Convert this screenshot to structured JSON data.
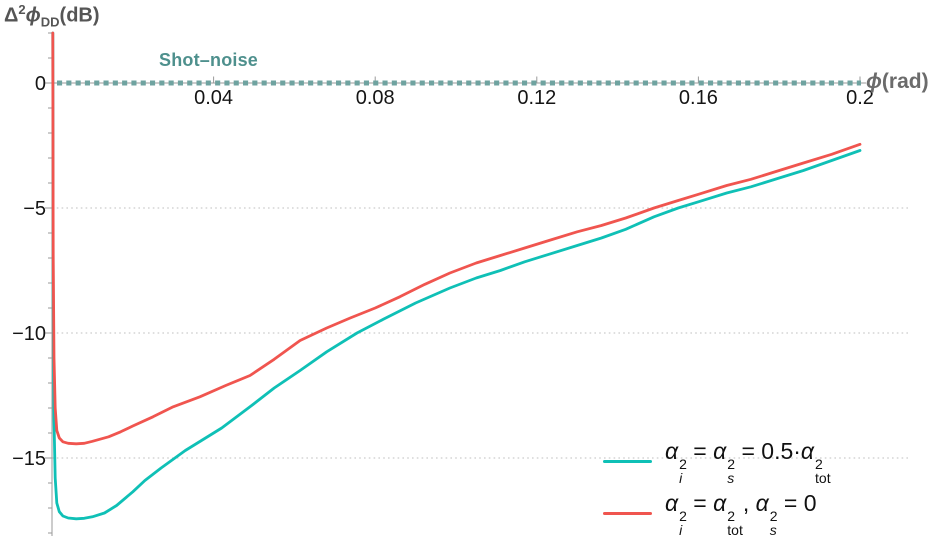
{
  "figure_background": "#ffffff",
  "annotations": {
    "shot_noise_label": "Shot–noise"
  },
  "chart_data": {
    "type": "line",
    "title": "",
    "xlabel_tokens": [
      {
        "i": "ϕ"
      },
      {
        "t": "(rad)"
      }
    ],
    "ylabel_tokens": [
      {
        "t": "Δ"
      },
      {
        "sup": "2"
      },
      {
        "i": "ϕ"
      },
      {
        "sub": "DD"
      },
      {
        "t": "(dB)"
      }
    ],
    "xlim": [
      0,
      0.2
    ],
    "ylim": [
      -18.1,
      2
    ],
    "grid": "horizontal-dotted",
    "gridlines_y": [
      -5,
      -10,
      -15
    ],
    "x_ticks": {
      "values": [
        0.04,
        0.08,
        0.12,
        0.16,
        0.2
      ],
      "labels": [
        "0.04",
        "0.08",
        "0.12",
        "0.16",
        "0.2"
      ]
    },
    "y_ticks": {
      "values": [
        0,
        -5,
        -10,
        -15
      ],
      "labels": [
        "0",
        "−5",
        "−10",
        "−15"
      ]
    },
    "y_minor_tick_step": 1,
    "colors": {
      "axis": "#9a9a9a",
      "grid": "#bfbfbf",
      "tick_label": "#141414",
      "ylabel": "#555555",
      "xlabel": "#6b6b6b",
      "shot_noise_line": "#6FA3A0",
      "shot_noise_label": "#4E908D"
    },
    "reference_line": {
      "value_db": 0,
      "style": "dashed",
      "label": "Shot–noise"
    },
    "legend_position": "bottom-right",
    "series": [
      {
        "id": "balanced-split",
        "color": "#0FC0B6",
        "legend_tokens": [
          {
            "stk": {
              "base": "α",
              "sup": "2",
              "sub": "i",
              "si": true
            }
          },
          {
            "t": " = "
          },
          {
            "stk": {
              "base": "α",
              "sup": "2",
              "sub": "s",
              "si": true
            }
          },
          {
            "t": " = 0.5·"
          },
          {
            "stk": {
              "base": "α",
              "sup": "2",
              "sub": "tot",
              "si": false
            }
          }
        ],
        "points": [
          [
            0.0002,
            2
          ],
          [
            0.0003,
            -9
          ],
          [
            0.0005,
            -13.5
          ],
          [
            0.0008,
            -15.8
          ],
          [
            0.0012,
            -16.8
          ],
          [
            0.0018,
            -17.15
          ],
          [
            0.0027,
            -17.32
          ],
          [
            0.004,
            -17.4
          ],
          [
            0.006,
            -17.43
          ],
          [
            0.008,
            -17.41
          ],
          [
            0.01,
            -17.35
          ],
          [
            0.013,
            -17.2
          ],
          [
            0.016,
            -16.9
          ],
          [
            0.02,
            -16.35
          ],
          [
            0.023,
            -15.9
          ],
          [
            0.027,
            -15.4
          ],
          [
            0.03,
            -15.05
          ],
          [
            0.033,
            -14.7
          ],
          [
            0.037,
            -14.3
          ],
          [
            0.042,
            -13.8
          ],
          [
            0.049,
            -12.95
          ],
          [
            0.055,
            -12.2
          ],
          [
            0.0614,
            -11.5
          ],
          [
            0.068,
            -10.75
          ],
          [
            0.0755,
            -10.0
          ],
          [
            0.082,
            -9.45
          ],
          [
            0.09,
            -8.8
          ],
          [
            0.0985,
            -8.2
          ],
          [
            0.105,
            -7.8
          ],
          [
            0.111,
            -7.5
          ],
          [
            0.117,
            -7.15
          ],
          [
            0.123,
            -6.85
          ],
          [
            0.13,
            -6.5
          ],
          [
            0.136,
            -6.2
          ],
          [
            0.142,
            -5.85
          ],
          [
            0.149,
            -5.35
          ],
          [
            0.155,
            -5.0
          ],
          [
            0.16,
            -4.75
          ],
          [
            0.167,
            -4.4
          ],
          [
            0.173,
            -4.15
          ],
          [
            0.18,
            -3.8
          ],
          [
            0.186,
            -3.5
          ],
          [
            0.193,
            -3.1
          ],
          [
            0.2,
            -2.7
          ]
        ]
      },
      {
        "id": "idler-only",
        "color": "#F0554F",
        "legend_tokens": [
          {
            "stk": {
              "base": "α",
              "sup": "2",
              "sub": "i",
              "si": true
            }
          },
          {
            "t": " = "
          },
          {
            "stk": {
              "base": "α",
              "sup": "2",
              "sub": "tot",
              "si": false
            }
          },
          {
            "t": ", "
          },
          {
            "stk": {
              "base": "α",
              "sup": "2",
              "sub": "s",
              "si": true
            }
          },
          {
            "t": " = 0"
          }
        ],
        "points": [
          [
            0.0002,
            2
          ],
          [
            0.0003,
            -7
          ],
          [
            0.0005,
            -11
          ],
          [
            0.0008,
            -13
          ],
          [
            0.0012,
            -13.9
          ],
          [
            0.0018,
            -14.2
          ],
          [
            0.0027,
            -14.35
          ],
          [
            0.004,
            -14.41
          ],
          [
            0.006,
            -14.43
          ],
          [
            0.008,
            -14.41
          ],
          [
            0.01,
            -14.33
          ],
          [
            0.014,
            -14.15
          ],
          [
            0.017,
            -13.95
          ],
          [
            0.02,
            -13.72
          ],
          [
            0.025,
            -13.35
          ],
          [
            0.03,
            -12.95
          ],
          [
            0.0366,
            -12.55
          ],
          [
            0.043,
            -12.1
          ],
          [
            0.049,
            -11.7
          ],
          [
            0.055,
            -11.05
          ],
          [
            0.0614,
            -10.3
          ],
          [
            0.068,
            -9.8
          ],
          [
            0.0738,
            -9.4
          ],
          [
            0.08,
            -9.0
          ],
          [
            0.0861,
            -8.55
          ],
          [
            0.0923,
            -8.05
          ],
          [
            0.0985,
            -7.6
          ],
          [
            0.105,
            -7.2
          ],
          [
            0.111,
            -6.9
          ],
          [
            0.117,
            -6.6
          ],
          [
            0.123,
            -6.3
          ],
          [
            0.13,
            -5.95
          ],
          [
            0.136,
            -5.7
          ],
          [
            0.142,
            -5.4
          ],
          [
            0.149,
            -5.0
          ],
          [
            0.155,
            -4.7
          ],
          [
            0.16,
            -4.45
          ],
          [
            0.167,
            -4.1
          ],
          [
            0.173,
            -3.85
          ],
          [
            0.18,
            -3.5
          ],
          [
            0.186,
            -3.2
          ],
          [
            0.193,
            -2.85
          ],
          [
            0.2,
            -2.45
          ]
        ]
      }
    ]
  }
}
